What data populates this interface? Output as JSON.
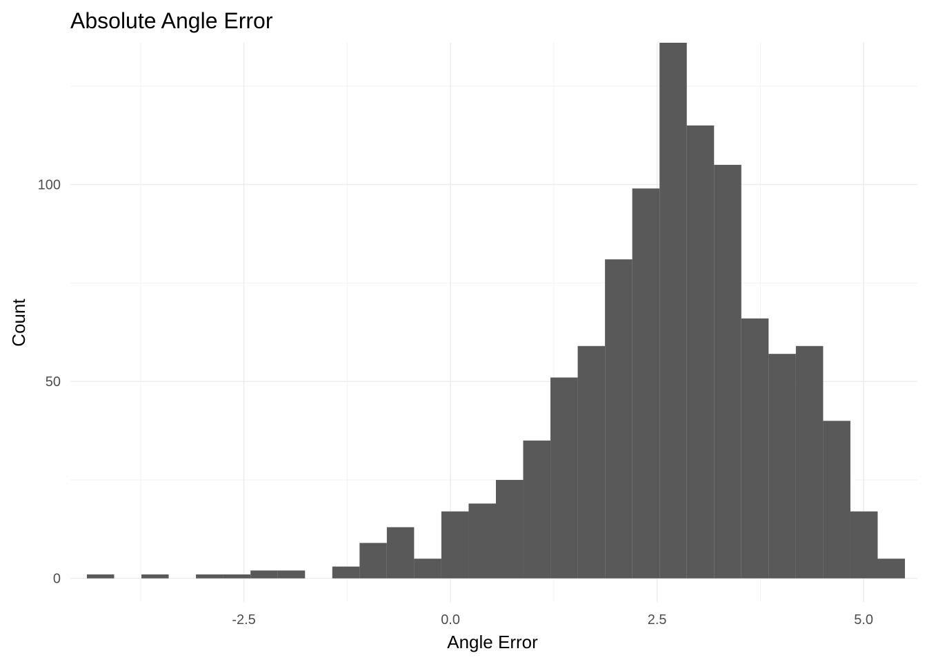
{
  "chart_data": {
    "type": "bar",
    "title": "Absolute Angle Error",
    "xlabel": "Angle Error",
    "ylabel": "Count",
    "xlim": [
      -4.6,
      5.65
    ],
    "ylim": [
      -6,
      136
    ],
    "x_ticks": [
      -2.5,
      0.0,
      2.5,
      5.0
    ],
    "x_tick_labels": [
      "-2.5",
      "0.0",
      "2.5",
      "5.0"
    ],
    "x_minor_ticks": [
      -3.75,
      -1.25,
      1.25,
      3.75
    ],
    "y_ticks": [
      0,
      50,
      100
    ],
    "y_tick_labels": [
      "0",
      "50",
      "100"
    ],
    "y_minor_ticks": [
      25,
      75,
      125
    ],
    "grid": true,
    "bar_color": "#595959",
    "bins": [
      {
        "x0": -4.4,
        "x1": -4.07,
        "count": 1
      },
      {
        "x0": -4.07,
        "x1": -3.74,
        "count": 0
      },
      {
        "x0": -3.74,
        "x1": -3.41,
        "count": 1
      },
      {
        "x0": -3.41,
        "x1": -3.08,
        "count": 0
      },
      {
        "x0": -3.08,
        "x1": -2.75,
        "count": 1
      },
      {
        "x0": -2.75,
        "x1": -2.42,
        "count": 1
      },
      {
        "x0": -2.42,
        "x1": -2.09,
        "count": 2
      },
      {
        "x0": -2.09,
        "x1": -1.76,
        "count": 2
      },
      {
        "x0": -1.76,
        "x1": -1.43,
        "count": 0
      },
      {
        "x0": -1.43,
        "x1": -1.1,
        "count": 3
      },
      {
        "x0": -1.1,
        "x1": -0.77,
        "count": 9
      },
      {
        "x0": -0.77,
        "x1": -0.44,
        "count": 13
      },
      {
        "x0": -0.44,
        "x1": -0.11,
        "count": 5
      },
      {
        "x0": -0.11,
        "x1": 0.22,
        "count": 17
      },
      {
        "x0": 0.22,
        "x1": 0.55,
        "count": 19
      },
      {
        "x0": 0.55,
        "x1": 0.88,
        "count": 25
      },
      {
        "x0": 0.88,
        "x1": 1.21,
        "count": 35
      },
      {
        "x0": 1.21,
        "x1": 1.54,
        "count": 51
      },
      {
        "x0": 1.54,
        "x1": 1.87,
        "count": 59
      },
      {
        "x0": 1.87,
        "x1": 2.2,
        "count": 81
      },
      {
        "x0": 2.2,
        "x1": 2.53,
        "count": 99
      },
      {
        "x0": 2.53,
        "x1": 2.86,
        "count": 136
      },
      {
        "x0": 2.86,
        "x1": 3.19,
        "count": 115
      },
      {
        "x0": 3.19,
        "x1": 3.52,
        "count": 105
      },
      {
        "x0": 3.52,
        "x1": 3.85,
        "count": 66
      },
      {
        "x0": 3.85,
        "x1": 4.18,
        "count": 57
      },
      {
        "x0": 4.18,
        "x1": 4.51,
        "count": 59
      },
      {
        "x0": 4.51,
        "x1": 4.84,
        "count": 40
      },
      {
        "x0": 4.84,
        "x1": 5.17,
        "count": 17
      },
      {
        "x0": 5.17,
        "x1": 5.5,
        "count": 5
      }
    ]
  }
}
